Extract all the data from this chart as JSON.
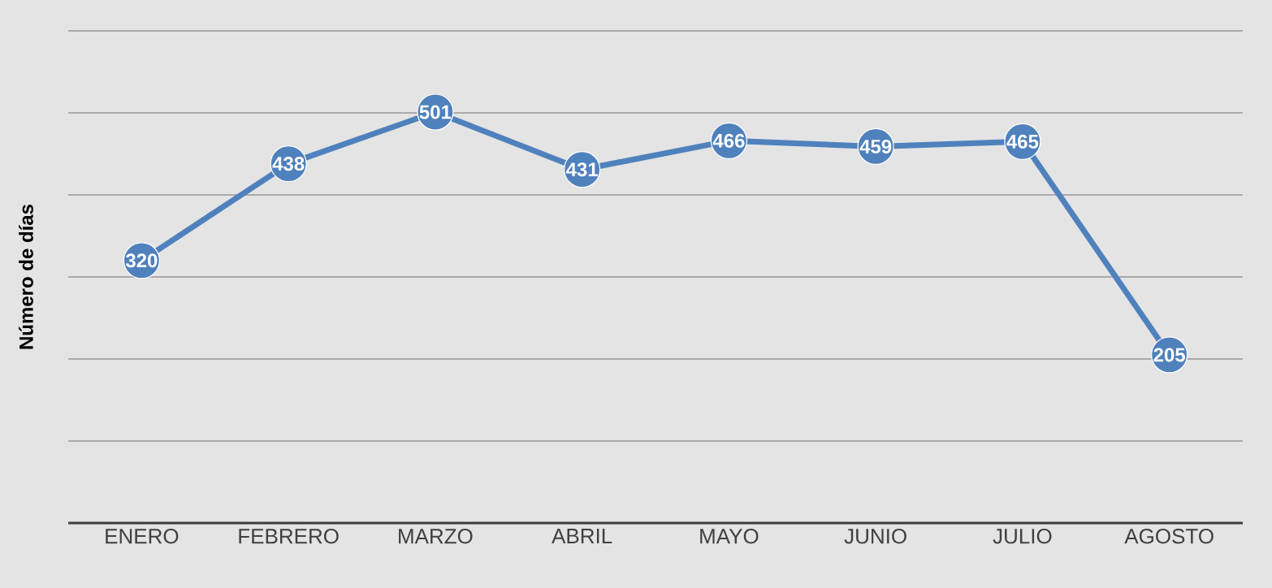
{
  "chart_data": {
    "type": "line",
    "ylabel": "Número de días",
    "categories": [
      "ENERO",
      "FEBRERO",
      "MARZO",
      "ABRIL",
      "MAYO",
      "JUNIO",
      "JULIO",
      "AGOSTO"
    ],
    "values": [
      320,
      438,
      501,
      431,
      466,
      459,
      465,
      205
    ],
    "color": "#4f81bd",
    "marker": "circle",
    "data_labels": true,
    "ylim": [
      0,
      600
    ],
    "yticks": [
      {
        "value": 0,
        "label": null
      },
      {
        "value": 100,
        "label": null
      },
      {
        "value": 200,
        "label": null
      },
      {
        "value": 300,
        "label": null
      },
      {
        "value": 400,
        "label": null
      },
      {
        "value": 500,
        "label": null
      },
      {
        "value": 600,
        "label": null
      }
    ],
    "tick_labels": "x",
    "grid": "y"
  }
}
